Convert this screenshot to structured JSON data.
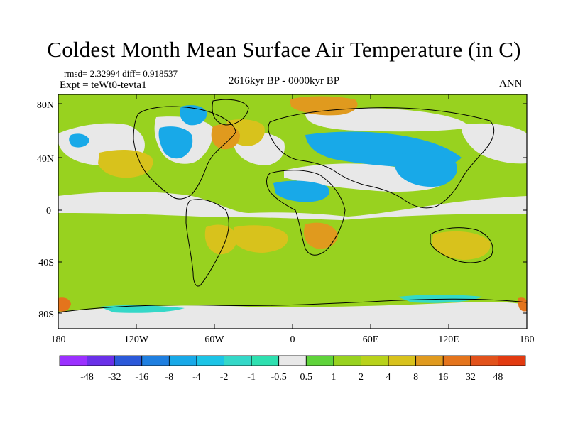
{
  "title": "Coldest Month Mean Surface Air Temperature (in C)",
  "stats": "rmsd= 2.32994  diff= 0.918537",
  "expt": "Expt = teWt0-tevta1",
  "period": "2616kyr BP - 0000kyr BP",
  "season": "ANN",
  "lat_labels": [
    "80N",
    "40N",
    "0",
    "40S",
    "80S"
  ],
  "lon_labels": [
    "180",
    "120W",
    "60W",
    "0",
    "60E",
    "120E",
    "180"
  ],
  "colorbar": {
    "labels": [
      "-48",
      "-32",
      "-16",
      "-8",
      "-4",
      "-2",
      "-1",
      "-0.5",
      "0.5",
      "1",
      "2",
      "4",
      "8",
      "16",
      "32",
      "48"
    ],
    "colors": [
      "#9b30ff",
      "#6a30e8",
      "#2b59d9",
      "#1f7fe0",
      "#18a9e8",
      "#1cc4e6",
      "#34d8c8",
      "#2ee0b0",
      "#e8e8e8",
      "#5fd33a",
      "#98d21f",
      "#b8d21a",
      "#d8c21c",
      "#e09a1e",
      "#e4741c",
      "#e2521b",
      "#e23a10"
    ]
  },
  "colors": {
    "ocean_base": "#98d21f",
    "neutral": "#e8e8e8",
    "cold": "#18a9e8",
    "cool": "#34d8c8",
    "warm": "#d8c21c",
    "warmer": "#e09a1e",
    "hot": "#e4741c"
  }
}
